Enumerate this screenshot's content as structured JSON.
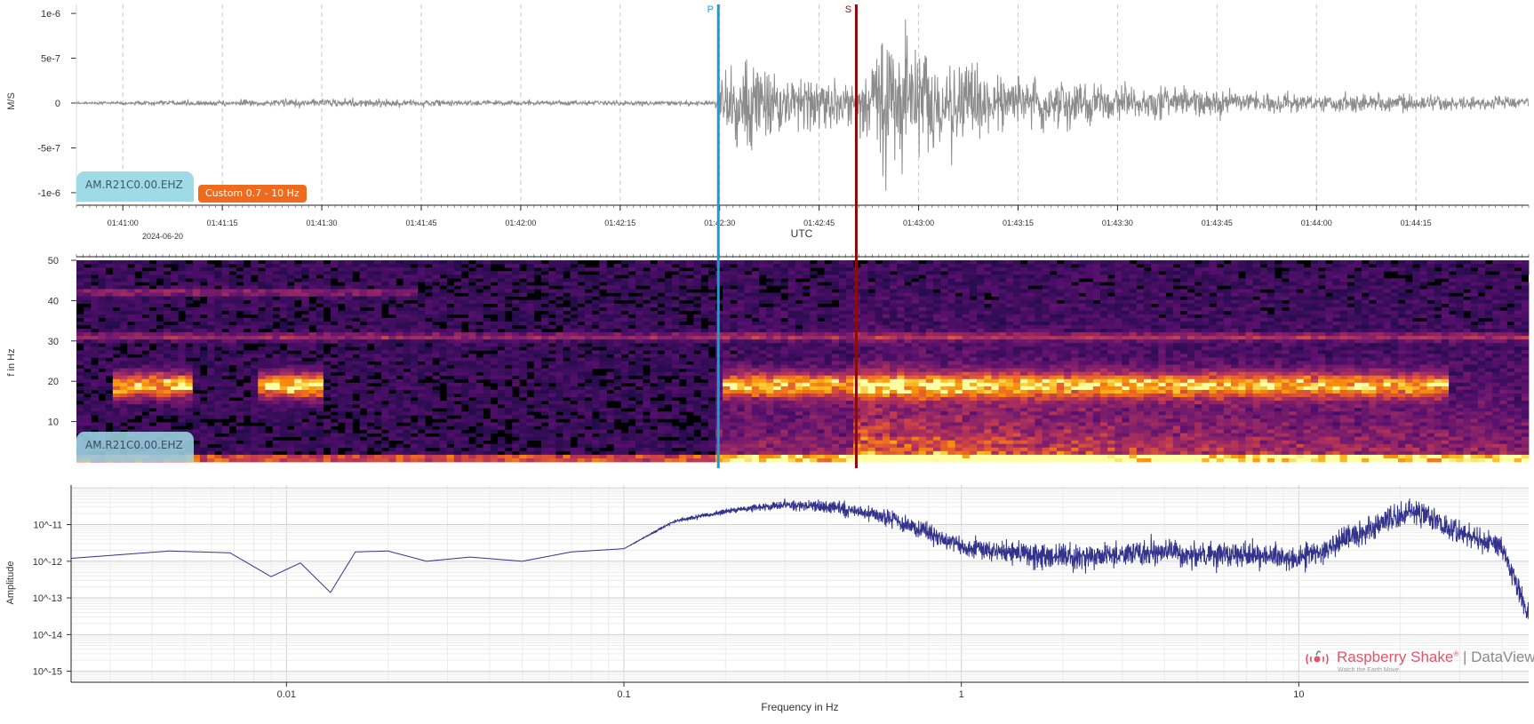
{
  "colors": {
    "waveform": "#8c8c8c",
    "p_marker": "#1d9bd8",
    "s_marker": "#8b0b0b",
    "spectrum_line": "#33338c",
    "station_chip": "#9fdbe6",
    "filter_chip": "#ee6a1d",
    "brand": "#e0566a"
  },
  "markers": {
    "p": {
      "label": "P",
      "time": "01:42:29.8"
    },
    "s": {
      "label": "S",
      "time": "01:42:50.6"
    }
  },
  "waveform_panel": {
    "station": "AM.R21C0.00.EHZ",
    "filter": "Custom 0.7 - 10 Hz",
    "ylabel": "M/S",
    "yticks": [
      "1e-6",
      "5e-7",
      "0",
      "-5e-7",
      "-1e-6"
    ],
    "xticks": [
      "01:41:00",
      "01:41:15",
      "01:41:30",
      "01:41:45",
      "01:42:00",
      "01:42:15",
      "01:42:30",
      "01:42:45",
      "01:43:00",
      "01:43:15",
      "01:43:30",
      "01:43:45",
      "01:44:00",
      "01:44:15"
    ],
    "date": "2024-06-20",
    "xlabel": "UTC"
  },
  "spectrogram_panel": {
    "station": "AM.R21C0.00.EHZ",
    "ylabel": "f in Hz",
    "yticks": [
      "50",
      "40",
      "30",
      "20",
      "10"
    ]
  },
  "spectrum_panel": {
    "ylabel": "Amplitude",
    "xlabel": "Frequency in Hz",
    "yticks": [
      "10^-11",
      "10^-12",
      "10^-13",
      "10^-14",
      "10^-15"
    ],
    "xticks": [
      "0.01",
      "0.1",
      "1",
      "10"
    ]
  },
  "brand": {
    "name": "Raspberry Shake",
    "mark": "®",
    "separator": " | ",
    "product": "DataView",
    "tagline": "Watch the Earth Move"
  },
  "chart_data": [
    {
      "type": "line",
      "name": "waveform",
      "xlabel": "UTC",
      "ylabel": "M/S",
      "x_range": [
        "01:40:53",
        "01:44:32"
      ],
      "ylim": [
        -1.1e-06,
        1.1e-06
      ],
      "grid": "vertical dashed",
      "envelope": {
        "x": [
          "01:40:53",
          "01:41:00",
          "01:41:30",
          "01:42:00",
          "01:42:29",
          "01:42:31",
          "01:42:35",
          "01:42:40",
          "01:42:50",
          "01:42:55",
          "01:43:00",
          "01:43:15",
          "01:43:45",
          "01:44:32"
        ],
        "amplitude": [
          1e-08,
          2e-08,
          5e-08,
          3e-08,
          3e-08,
          4e-07,
          5e-07,
          3e-07,
          2.5e-07,
          9e-07,
          6e-07,
          3e-07,
          1.5e-07,
          6e-08
        ]
      }
    },
    {
      "type": "heatmap",
      "name": "spectrogram",
      "ylabel": "f in Hz",
      "ylim": [
        0,
        50
      ],
      "x_range": [
        "01:40:53",
        "01:44:32"
      ],
      "colormap": "inferno",
      "bands": [
        {
          "f": 19,
          "from": "01:40:59",
          "to": "01:41:11",
          "intensity": 0.8
        },
        {
          "f": 19,
          "from": "01:41:20",
          "to": "01:41:30",
          "intensity": 0.85
        },
        {
          "f": 19,
          "from": "01:42:30",
          "to": "01:44:20",
          "intensity": 0.7
        },
        {
          "f": 31,
          "from": "01:40:53",
          "to": "01:44:32",
          "intensity": 0.35
        },
        {
          "f": 42,
          "from": "01:40:53",
          "to": "01:41:45",
          "intensity": 0.3
        }
      ]
    },
    {
      "type": "line",
      "name": "spectrum",
      "xscale": "log",
      "yscale": "log",
      "xlabel": "Frequency in Hz",
      "ylabel": "Amplitude",
      "xlim": [
        0.0023,
        48
      ],
      "ylim": [
        5e-16,
        1.2e-10
      ],
      "x": [
        0.0023,
        0.0045,
        0.0068,
        0.009,
        0.011,
        0.0135,
        0.016,
        0.02,
        0.026,
        0.035,
        0.05,
        0.07,
        0.1,
        0.14,
        0.2,
        0.3,
        0.42,
        0.6,
        0.8,
        1.0,
        1.5,
        2,
        3,
        4,
        5,
        7,
        10,
        14,
        18,
        22,
        30,
        40,
        48
      ],
      "y": [
        1.2e-12,
        1.9e-12,
        1.7e-12,
        3.8e-13,
        9e-13,
        1.4e-13,
        1.8e-12,
        1.9e-12,
        1e-12,
        1.3e-12,
        1e-12,
        1.8e-12,
        2.2e-12,
        1.2e-11,
        2.3e-11,
        3.5e-11,
        3e-11,
        1.6e-11,
        6e-12,
        2.5e-12,
        1.6e-12,
        1.2e-12,
        1.6e-12,
        2e-12,
        1.4e-12,
        1.6e-12,
        1.2e-12,
        4e-12,
        1.2e-11,
        2.5e-11,
        6e-12,
        2.5e-12,
        3e-14
      ]
    }
  ]
}
